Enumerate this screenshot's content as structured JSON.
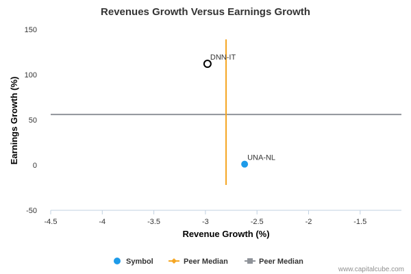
{
  "chart_data": {
    "type": "scatter",
    "title": "Revenues Growth Versus Earnings Growth",
    "xlabel": "Revenue Growth (%)",
    "ylabel": "Earnings Growth (%)",
    "xlim": [
      -4.5,
      -1.1
    ],
    "ylim": [
      -50,
      150
    ],
    "x_ticks": [
      -4.5,
      -4,
      -3.5,
      -3,
      -2.5,
      -2,
      -1.5
    ],
    "x_tick_labels": [
      "-4.5",
      "-4",
      "-3.5",
      "-3",
      "-2.5",
      "-2",
      "-1.5"
    ],
    "y_ticks": [
      150,
      100,
      50,
      0,
      -50
    ],
    "y_tick_labels": [
      "150",
      "100",
      "50",
      "0",
      "-50"
    ],
    "grid": false,
    "points": [
      {
        "label": "DNN-IT",
        "x": -2.98,
        "y": 112,
        "style": "hollow"
      },
      {
        "label": "UNA-NL",
        "x": -2.62,
        "y": 1,
        "style": "filled"
      }
    ],
    "peer_median_x": {
      "x": -2.8,
      "y_range": [
        -22,
        139
      ]
    },
    "peer_median_y": {
      "y": 56,
      "x_range": [
        -4.5,
        -1.1
      ]
    },
    "legend": {
      "placement": "bottom",
      "items": [
        {
          "label": "Symbol",
          "marker": "circle",
          "color": "#1e9be9"
        },
        {
          "label": "Peer Median",
          "marker": "diamond-line",
          "color": "#f5a623"
        },
        {
          "label": "Peer Median",
          "marker": "square-line",
          "color": "#8f9399"
        }
      ]
    },
    "colors": {
      "symbol": "#1e9be9",
      "hollow_point": "#000000",
      "peer_median_x": "#f5a623",
      "peer_median_y": "#8f9399",
      "axis_line": "#c0d0e0"
    }
  },
  "credit": "www.capitalcube.com"
}
